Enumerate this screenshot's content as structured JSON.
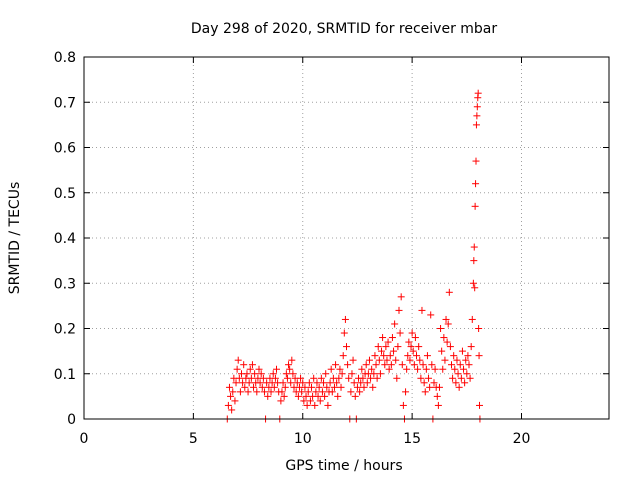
{
  "chart_data": {
    "type": "scatter",
    "title": "Day 298 of 2020, SRMTID for receiver mbar",
    "xlabel": "GPS time / hours",
    "ylabel": "SRMTID / TECUs",
    "xlim": [
      0,
      24
    ],
    "ylim": [
      0,
      0.8
    ],
    "xticks": [
      0,
      5,
      10,
      15,
      20
    ],
    "yticks": [
      0,
      0.1,
      0.2,
      0.3,
      0.4,
      0.5,
      0.6,
      0.7,
      0.8
    ],
    "grid": true,
    "marker": "plus",
    "color": "#ff0000",
    "series": [
      {
        "values": [
          [
            6.55,
            0.0
          ],
          [
            6.6,
            0.03
          ],
          [
            6.65,
            0.07
          ],
          [
            6.7,
            0.05
          ],
          [
            6.75,
            0.02
          ],
          [
            6.8,
            0.06
          ],
          [
            6.85,
            0.09
          ],
          [
            6.9,
            0.04
          ],
          [
            6.95,
            0.08
          ],
          [
            7.0,
            0.11
          ],
          [
            7.05,
            0.13
          ],
          [
            7.1,
            0.09
          ],
          [
            7.15,
            0.06
          ],
          [
            7.2,
            0.1
          ],
          [
            7.25,
            0.08
          ],
          [
            7.3,
            0.12
          ],
          [
            7.35,
            0.07
          ],
          [
            7.4,
            0.09
          ],
          [
            7.45,
            0.1
          ],
          [
            7.5,
            0.06
          ],
          [
            7.55,
            0.08
          ],
          [
            7.6,
            0.11
          ],
          [
            7.65,
            0.09
          ],
          [
            7.7,
            0.12
          ],
          [
            7.75,
            0.07
          ],
          [
            7.8,
            0.1
          ],
          [
            7.85,
            0.08
          ],
          [
            7.9,
            0.06
          ],
          [
            7.95,
            0.09
          ],
          [
            8.0,
            0.11
          ],
          [
            8.05,
            0.08
          ],
          [
            8.1,
            0.1
          ],
          [
            8.15,
            0.07
          ],
          [
            8.2,
            0.09
          ],
          [
            8.25,
            0.06
          ],
          [
            8.3,
            0.0
          ],
          [
            8.35,
            0.08
          ],
          [
            8.4,
            0.05
          ],
          [
            8.45,
            0.07
          ],
          [
            8.5,
            0.09
          ],
          [
            8.55,
            0.06
          ],
          [
            8.6,
            0.08
          ],
          [
            8.65,
            0.1
          ],
          [
            8.7,
            0.07
          ],
          [
            8.75,
            0.09
          ],
          [
            8.8,
            0.11
          ],
          [
            8.85,
            0.08
          ],
          [
            8.9,
            0.06
          ],
          [
            8.95,
            0.0
          ],
          [
            9.0,
            0.04
          ],
          [
            9.05,
            0.06
          ],
          [
            9.1,
            0.08
          ],
          [
            9.15,
            0.05
          ],
          [
            9.2,
            0.07
          ],
          [
            9.25,
            0.1
          ],
          [
            9.3,
            0.09
          ],
          [
            9.35,
            0.12
          ],
          [
            9.4,
            0.11
          ],
          [
            9.45,
            0.08
          ],
          [
            9.5,
            0.13
          ],
          [
            9.55,
            0.1
          ],
          [
            9.6,
            0.07
          ],
          [
            9.65,
            0.09
          ],
          [
            9.7,
            0.06
          ],
          [
            9.75,
            0.08
          ],
          [
            9.8,
            0.05
          ],
          [
            9.85,
            0.07
          ],
          [
            9.9,
            0.09
          ],
          [
            9.95,
            0.06
          ],
          [
            10.0,
            0.08
          ],
          [
            10.05,
            0.04
          ],
          [
            10.1,
            0.07
          ],
          [
            10.15,
            0.05
          ],
          [
            10.2,
            0.03
          ],
          [
            10.25,
            0.06
          ],
          [
            10.3,
            0.08
          ],
          [
            10.35,
            0.04
          ],
          [
            10.4,
            0.07
          ],
          [
            10.45,
            0.05
          ],
          [
            10.5,
            0.09
          ],
          [
            10.55,
            0.03
          ],
          [
            10.6,
            0.06
          ],
          [
            10.65,
            0.08
          ],
          [
            10.7,
            0.05
          ],
          [
            10.75,
            0.07
          ],
          [
            10.8,
            0.04
          ],
          [
            10.85,
            0.09
          ],
          [
            10.9,
            0.06
          ],
          [
            10.95,
            0.08
          ],
          [
            11.0,
            0.05
          ],
          [
            11.05,
            0.1
          ],
          [
            11.1,
            0.07
          ],
          [
            11.15,
            0.03
          ],
          [
            11.2,
            0.06
          ],
          [
            11.25,
            0.08
          ],
          [
            11.3,
            0.11
          ],
          [
            11.35,
            0.06
          ],
          [
            11.4,
            0.09
          ],
          [
            11.45,
            0.07
          ],
          [
            11.5,
            0.12
          ],
          [
            11.55,
            0.08
          ],
          [
            11.6,
            0.05
          ],
          [
            11.65,
            0.09
          ],
          [
            11.7,
            0.11
          ],
          [
            11.75,
            0.07
          ],
          [
            11.8,
            0.1
          ],
          [
            11.85,
            0.14
          ],
          [
            11.9,
            0.19
          ],
          [
            11.95,
            0.22
          ],
          [
            12.0,
            0.16
          ],
          [
            12.05,
            0.12
          ],
          [
            12.1,
            0.09
          ],
          [
            12.15,
            0.0
          ],
          [
            12.2,
            0.06
          ],
          [
            12.25,
            0.1
          ],
          [
            12.3,
            0.13
          ],
          [
            12.35,
            0.08
          ],
          [
            12.4,
            0.05
          ],
          [
            12.45,
            0.0
          ],
          [
            12.5,
            0.07
          ],
          [
            12.55,
            0.09
          ],
          [
            12.6,
            0.06
          ],
          [
            12.65,
            0.08
          ],
          [
            12.7,
            0.11
          ],
          [
            12.75,
            0.09
          ],
          [
            12.8,
            0.07
          ],
          [
            12.85,
            0.1
          ],
          [
            12.9,
            0.12
          ],
          [
            12.95,
            0.08
          ],
          [
            13.0,
            0.1
          ],
          [
            13.05,
            0.13
          ],
          [
            13.1,
            0.09
          ],
          [
            13.15,
            0.11
          ],
          [
            13.2,
            0.07
          ],
          [
            13.25,
            0.1
          ],
          [
            13.3,
            0.14
          ],
          [
            13.35,
            0.12
          ],
          [
            13.4,
            0.09
          ],
          [
            13.45,
            0.16
          ],
          [
            13.5,
            0.13
          ],
          [
            13.55,
            0.1
          ],
          [
            13.6,
            0.15
          ],
          [
            13.65,
            0.18
          ],
          [
            13.7,
            0.14
          ],
          [
            13.75,
            0.12
          ],
          [
            13.8,
            0.16
          ],
          [
            13.85,
            0.13
          ],
          [
            13.9,
            0.17
          ],
          [
            13.95,
            0.11
          ],
          [
            14.0,
            0.14
          ],
          [
            14.05,
            0.12
          ],
          [
            14.1,
            0.18
          ],
          [
            14.15,
            0.15
          ],
          [
            14.2,
            0.21
          ],
          [
            14.25,
            0.13
          ],
          [
            14.3,
            0.09
          ],
          [
            14.35,
            0.16
          ],
          [
            14.4,
            0.24
          ],
          [
            14.45,
            0.19
          ],
          [
            14.5,
            0.27
          ],
          [
            14.55,
            0.12
          ],
          [
            14.6,
            0.03
          ],
          [
            14.65,
            0.0
          ],
          [
            14.7,
            0.06
          ],
          [
            14.75,
            0.11
          ],
          [
            14.8,
            0.14
          ],
          [
            14.85,
            0.17
          ],
          [
            14.9,
            0.13
          ],
          [
            14.95,
            0.16
          ],
          [
            15.0,
            0.19
          ],
          [
            15.05,
            0.15
          ],
          [
            15.1,
            0.12
          ],
          [
            15.15,
            0.18
          ],
          [
            15.2,
            0.14
          ],
          [
            15.25,
            0.11
          ],
          [
            15.3,
            0.16
          ],
          [
            15.35,
            0.13
          ],
          [
            15.4,
            0.09
          ],
          [
            15.45,
            0.24
          ],
          [
            15.5,
            0.12
          ],
          [
            15.55,
            0.08
          ],
          [
            15.6,
            0.06
          ],
          [
            15.65,
            0.11
          ],
          [
            15.7,
            0.14
          ],
          [
            15.75,
            0.09
          ],
          [
            15.8,
            0.07
          ],
          [
            15.85,
            0.23
          ],
          [
            15.9,
            0.12
          ],
          [
            15.95,
            0.0
          ],
          [
            16.0,
            0.08
          ],
          [
            16.05,
            0.11
          ],
          [
            16.1,
            0.07
          ],
          [
            16.15,
            0.05
          ],
          [
            16.2,
            0.03
          ],
          [
            16.25,
            0.07
          ],
          [
            16.3,
            0.2
          ],
          [
            16.35,
            0.15
          ],
          [
            16.4,
            0.11
          ],
          [
            16.45,
            0.18
          ],
          [
            16.5,
            0.13
          ],
          [
            16.55,
            0.22
          ],
          [
            16.6,
            0.17
          ],
          [
            16.65,
            0.21
          ],
          [
            16.7,
            0.28
          ],
          [
            16.75,
            0.16
          ],
          [
            16.8,
            0.12
          ],
          [
            16.85,
            0.09
          ],
          [
            16.9,
            0.14
          ],
          [
            16.95,
            0.11
          ],
          [
            17.0,
            0.08
          ],
          [
            17.05,
            0.13
          ],
          [
            17.1,
            0.1
          ],
          [
            17.15,
            0.07
          ],
          [
            17.2,
            0.12
          ],
          [
            17.25,
            0.09
          ],
          [
            17.3,
            0.15
          ],
          [
            17.35,
            0.11
          ],
          [
            17.4,
            0.08
          ],
          [
            17.45,
            0.13
          ],
          [
            17.5,
            0.1
          ],
          [
            17.55,
            0.14
          ],
          [
            17.6,
            0.12
          ],
          [
            17.65,
            0.09
          ],
          [
            17.7,
            0.16
          ],
          [
            17.75,
            0.22
          ],
          [
            17.8,
            0.3
          ],
          [
            17.82,
            0.35
          ],
          [
            17.84,
            0.38
          ],
          [
            17.86,
            0.29
          ],
          [
            17.88,
            0.47
          ],
          [
            17.9,
            0.52
          ],
          [
            17.92,
            0.57
          ],
          [
            17.94,
            0.65
          ],
          [
            17.96,
            0.67
          ],
          [
            17.98,
            0.69
          ],
          [
            18.0,
            0.71
          ],
          [
            18.02,
            0.72
          ],
          [
            18.04,
            0.2
          ],
          [
            18.06,
            0.14
          ],
          [
            18.08,
            0.03
          ],
          [
            18.1,
            0.0
          ]
        ]
      }
    ]
  }
}
